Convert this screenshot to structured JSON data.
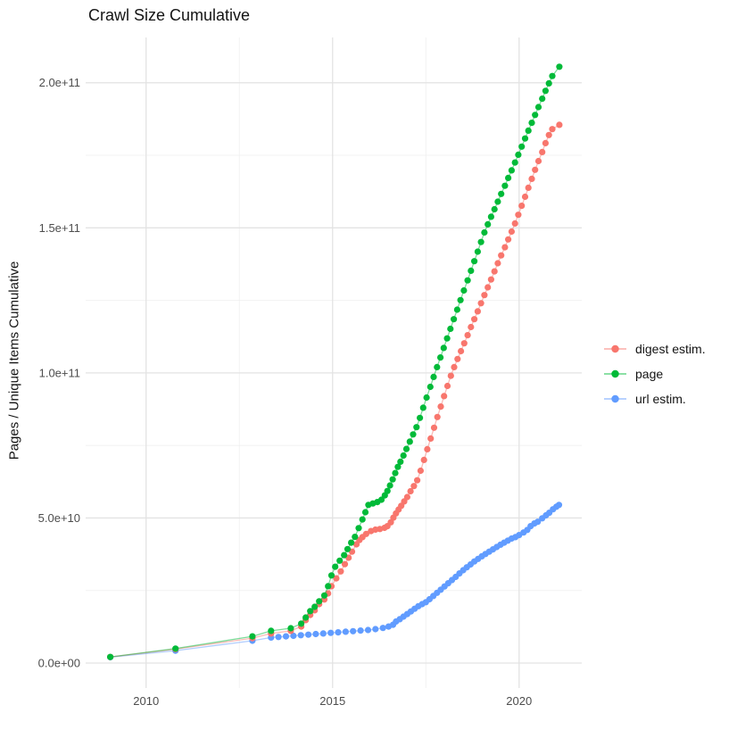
{
  "title": "Crawl Size Cumulative",
  "legend": {
    "items": [
      {
        "label": "digest estim.",
        "color": "#F8766D"
      },
      {
        "label": "page",
        "color": "#00BA38"
      },
      {
        "label": "url estim.",
        "color": "#619CFF"
      }
    ]
  },
  "chart_data": {
    "type": "line",
    "title": "Crawl Size Cumulative",
    "xlabel": "",
    "ylabel": "Pages / Unique Items Cumulative",
    "y_values_unit": "1e9 (values below are billions of pages / unique items)",
    "xlim": [
      2008.38,
      2021.68
    ],
    "ylim": [
      -8.6,
      215.6
    ],
    "grid": true,
    "legend_position": "right",
    "grid_major_color": "#e3e3e3",
    "grid_minor_color": "#efefef",
    "tick_label_color": "#4d4d4d",
    "x_ticks": [
      {
        "value": 2010,
        "label": "2010"
      },
      {
        "value": 2015,
        "label": "2015"
      },
      {
        "value": 2020,
        "label": "2020"
      }
    ],
    "y_ticks": [
      {
        "value": 0,
        "label": "0.0e+00"
      },
      {
        "value": 50,
        "label": "5.0e+10"
      },
      {
        "value": 100,
        "label": "1.0e+11"
      },
      {
        "value": 150,
        "label": "1.5e+11"
      },
      {
        "value": 200,
        "label": "2.0e+11"
      }
    ],
    "x_minor": [
      2012.5,
      2017.5
    ],
    "y_minor": [
      25,
      75,
      125,
      175
    ],
    "series": [
      {
        "id": "digest-estim",
        "name": "digest estim.",
        "color": "#F8766D",
        "points": [
          [
            2009.04,
            2.1
          ],
          [
            2010.79,
            4.8
          ],
          [
            2012.85,
            8.6
          ],
          [
            2013.35,
            10.2
          ],
          [
            2013.88,
            11.1
          ],
          [
            2014.16,
            12.6
          ],
          [
            2014.28,
            14.8
          ],
          [
            2014.4,
            16.6
          ],
          [
            2014.52,
            18.2
          ],
          [
            2014.64,
            20.3
          ],
          [
            2014.78,
            21.9
          ],
          [
            2014.88,
            24.0
          ],
          [
            2014.97,
            26.5
          ],
          [
            2015.1,
            29.2
          ],
          [
            2015.22,
            31.6
          ],
          [
            2015.33,
            34.1
          ],
          [
            2015.43,
            36.3
          ],
          [
            2015.52,
            38.4
          ],
          [
            2015.64,
            40.9
          ],
          [
            2015.72,
            42.4
          ],
          [
            2015.8,
            43.4
          ],
          [
            2015.9,
            44.5
          ],
          [
            2016.03,
            45.5
          ],
          [
            2016.15,
            46.0
          ],
          [
            2016.27,
            46.2
          ],
          [
            2016.39,
            46.6
          ],
          [
            2016.47,
            47.2
          ],
          [
            2016.56,
            48.5
          ],
          [
            2016.63,
            50.1
          ],
          [
            2016.7,
            51.6
          ],
          [
            2016.77,
            52.9
          ],
          [
            2016.84,
            54.2
          ],
          [
            2016.92,
            55.7
          ],
          [
            2017.0,
            57.2
          ],
          [
            2017.09,
            59.2
          ],
          [
            2017.18,
            61.0
          ],
          [
            2017.27,
            63.0
          ],
          [
            2017.36,
            66.3
          ],
          [
            2017.45,
            70.0
          ],
          [
            2017.54,
            73.7
          ],
          [
            2017.63,
            77.4
          ],
          [
            2017.72,
            81.1
          ],
          [
            2017.81,
            84.8
          ],
          [
            2017.9,
            88.4
          ],
          [
            2017.99,
            92.0
          ],
          [
            2018.08,
            95.5
          ],
          [
            2018.17,
            99.0
          ],
          [
            2018.26,
            102.0
          ],
          [
            2018.35,
            104.8
          ],
          [
            2018.44,
            107.5
          ],
          [
            2018.53,
            110.2
          ],
          [
            2018.62,
            113.0
          ],
          [
            2018.71,
            115.8
          ],
          [
            2018.8,
            118.5
          ],
          [
            2018.89,
            121.2
          ],
          [
            2018.98,
            124.0
          ],
          [
            2019.07,
            126.8
          ],
          [
            2019.16,
            129.5
          ],
          [
            2019.25,
            132.2
          ],
          [
            2019.34,
            135.0
          ],
          [
            2019.43,
            137.8
          ],
          [
            2019.52,
            140.5
          ],
          [
            2019.62,
            143.3
          ],
          [
            2019.71,
            146.0
          ],
          [
            2019.8,
            148.7
          ],
          [
            2019.89,
            151.5
          ],
          [
            2019.98,
            154.5
          ],
          [
            2020.07,
            157.6
          ],
          [
            2020.16,
            160.7
          ],
          [
            2020.25,
            163.8
          ],
          [
            2020.34,
            166.9
          ],
          [
            2020.43,
            170.0
          ],
          [
            2020.52,
            173.0
          ],
          [
            2020.62,
            176.1
          ],
          [
            2020.71,
            179.2
          ],
          [
            2020.8,
            182.0
          ],
          [
            2020.89,
            184.0
          ],
          [
            2021.08,
            185.5
          ]
        ]
      },
      {
        "id": "page",
        "name": "page",
        "color": "#00BA38",
        "points": [
          [
            2009.04,
            2.1
          ],
          [
            2010.79,
            5.0
          ],
          [
            2012.85,
            9.2
          ],
          [
            2013.35,
            11.1
          ],
          [
            2013.88,
            12.0
          ],
          [
            2014.16,
            13.6
          ],
          [
            2014.28,
            15.7
          ],
          [
            2014.4,
            17.9
          ],
          [
            2014.52,
            19.4
          ],
          [
            2014.64,
            21.3
          ],
          [
            2014.78,
            23.3
          ],
          [
            2014.88,
            26.5
          ],
          [
            2014.97,
            30.2
          ],
          [
            2015.07,
            33.2
          ],
          [
            2015.19,
            35.3
          ],
          [
            2015.31,
            37.2
          ],
          [
            2015.4,
            39.3
          ],
          [
            2015.5,
            41.5
          ],
          [
            2015.6,
            43.5
          ],
          [
            2015.7,
            46.5
          ],
          [
            2015.8,
            49.5
          ],
          [
            2015.88,
            52.0
          ],
          [
            2015.96,
            54.5
          ],
          [
            2016.08,
            55.0
          ],
          [
            2016.2,
            55.5
          ],
          [
            2016.31,
            56.3
          ],
          [
            2016.4,
            57.8
          ],
          [
            2016.47,
            59.3
          ],
          [
            2016.54,
            61.2
          ],
          [
            2016.61,
            63.3
          ],
          [
            2016.68,
            65.5
          ],
          [
            2016.75,
            67.6
          ],
          [
            2016.82,
            69.4
          ],
          [
            2016.9,
            71.5
          ],
          [
            2016.98,
            73.8
          ],
          [
            2017.07,
            76.3
          ],
          [
            2017.16,
            78.8
          ],
          [
            2017.25,
            81.3
          ],
          [
            2017.34,
            84.5
          ],
          [
            2017.43,
            88.0
          ],
          [
            2017.52,
            91.5
          ],
          [
            2017.62,
            95.2
          ],
          [
            2017.71,
            98.6
          ],
          [
            2017.8,
            102.0
          ],
          [
            2017.89,
            105.3
          ],
          [
            2017.98,
            108.6
          ],
          [
            2018.07,
            111.9
          ],
          [
            2018.16,
            115.2
          ],
          [
            2018.25,
            118.5
          ],
          [
            2018.34,
            121.8
          ],
          [
            2018.43,
            125.1
          ],
          [
            2018.52,
            128.4
          ],
          [
            2018.62,
            131.9
          ],
          [
            2018.71,
            135.2
          ],
          [
            2018.8,
            138.5
          ],
          [
            2018.89,
            141.8
          ],
          [
            2018.98,
            145.1
          ],
          [
            2019.07,
            148.4
          ],
          [
            2019.16,
            151.2
          ],
          [
            2019.25,
            153.8
          ],
          [
            2019.34,
            156.4
          ],
          [
            2019.43,
            159.0
          ],
          [
            2019.52,
            161.7
          ],
          [
            2019.62,
            164.5
          ],
          [
            2019.71,
            167.2
          ],
          [
            2019.8,
            169.8
          ],
          [
            2019.89,
            172.5
          ],
          [
            2019.98,
            175.2
          ],
          [
            2020.07,
            178.0
          ],
          [
            2020.16,
            180.8
          ],
          [
            2020.25,
            183.5
          ],
          [
            2020.34,
            186.2
          ],
          [
            2020.43,
            188.9
          ],
          [
            2020.52,
            191.6
          ],
          [
            2020.62,
            194.5
          ],
          [
            2020.71,
            197.2
          ],
          [
            2020.8,
            199.8
          ],
          [
            2020.89,
            202.3
          ],
          [
            2021.08,
            205.5
          ]
        ]
      },
      {
        "id": "url-estim",
        "name": "url estim.",
        "color": "#619CFF",
        "points": [
          [
            2009.04,
            2.0
          ],
          [
            2010.79,
            4.3
          ],
          [
            2012.85,
            7.7
          ],
          [
            2013.35,
            8.8
          ],
          [
            2013.55,
            9.0
          ],
          [
            2013.75,
            9.2
          ],
          [
            2013.95,
            9.4
          ],
          [
            2014.15,
            9.6
          ],
          [
            2014.35,
            9.8
          ],
          [
            2014.55,
            10.0
          ],
          [
            2014.75,
            10.2
          ],
          [
            2014.95,
            10.4
          ],
          [
            2015.15,
            10.6
          ],
          [
            2015.35,
            10.8
          ],
          [
            2015.55,
            11.0
          ],
          [
            2015.75,
            11.2
          ],
          [
            2015.95,
            11.4
          ],
          [
            2016.15,
            11.7
          ],
          [
            2016.35,
            12.1
          ],
          [
            2016.5,
            12.6
          ],
          [
            2016.62,
            13.2
          ],
          [
            2016.7,
            14.3
          ],
          [
            2016.8,
            15.1
          ],
          [
            2016.9,
            16.0
          ],
          [
            2017.0,
            16.9
          ],
          [
            2017.1,
            17.8
          ],
          [
            2017.2,
            18.7
          ],
          [
            2017.3,
            19.6
          ],
          [
            2017.4,
            20.3
          ],
          [
            2017.5,
            21.0
          ],
          [
            2017.6,
            22.0
          ],
          [
            2017.7,
            23.1
          ],
          [
            2017.8,
            24.2
          ],
          [
            2017.9,
            25.3
          ],
          [
            2018.0,
            26.4
          ],
          [
            2018.1,
            27.5
          ],
          [
            2018.2,
            28.6
          ],
          [
            2018.3,
            29.7
          ],
          [
            2018.4,
            30.9
          ],
          [
            2018.5,
            32.0
          ],
          [
            2018.6,
            33.0
          ],
          [
            2018.7,
            34.0
          ],
          [
            2018.8,
            35.0
          ],
          [
            2018.9,
            35.9
          ],
          [
            2019.0,
            36.8
          ],
          [
            2019.1,
            37.6
          ],
          [
            2019.2,
            38.4
          ],
          [
            2019.3,
            39.2
          ],
          [
            2019.4,
            40.0
          ],
          [
            2019.5,
            40.8
          ],
          [
            2019.6,
            41.5
          ],
          [
            2019.7,
            42.2
          ],
          [
            2019.8,
            42.9
          ],
          [
            2019.9,
            43.4
          ],
          [
            2020.0,
            44.1
          ],
          [
            2020.12,
            45.0
          ],
          [
            2020.22,
            45.9
          ],
          [
            2020.31,
            47.2
          ],
          [
            2020.41,
            48.1
          ],
          [
            2020.5,
            48.7
          ],
          [
            2020.62,
            49.9
          ],
          [
            2020.72,
            50.9
          ],
          [
            2020.81,
            51.8
          ],
          [
            2020.91,
            53.0
          ],
          [
            2021.0,
            53.9
          ],
          [
            2021.07,
            54.5
          ]
        ]
      }
    ]
  }
}
